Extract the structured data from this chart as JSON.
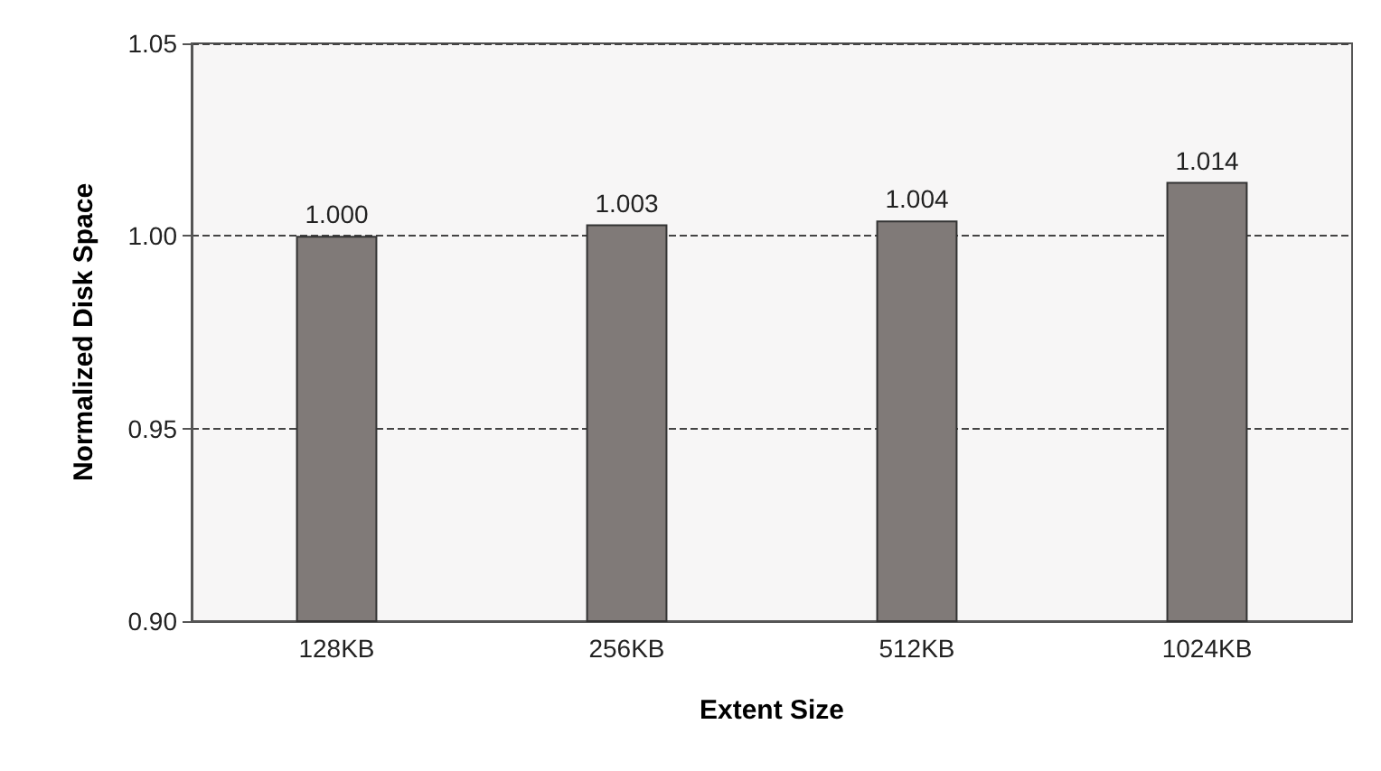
{
  "chart_data": {
    "type": "bar",
    "xlabel": "Extent Size",
    "ylabel": "Normalized Disk Space",
    "categories": [
      "128KB",
      "256KB",
      "512KB",
      "1024KB"
    ],
    "values": [
      1.0,
      1.003,
      1.004,
      1.014
    ],
    "value_labels": [
      "1.000",
      "1.003",
      "1.004",
      "1.014"
    ],
    "color": "#807a78",
    "ylim": [
      0.9,
      1.05
    ],
    "yticks": [
      {
        "value": 0.9,
        "label": "0.90"
      },
      {
        "value": 0.95,
        "label": "0.95"
      },
      {
        "value": 1.0,
        "label": "1.00"
      },
      {
        "value": 1.05,
        "label": "1.05"
      }
    ],
    "grid": "y"
  }
}
